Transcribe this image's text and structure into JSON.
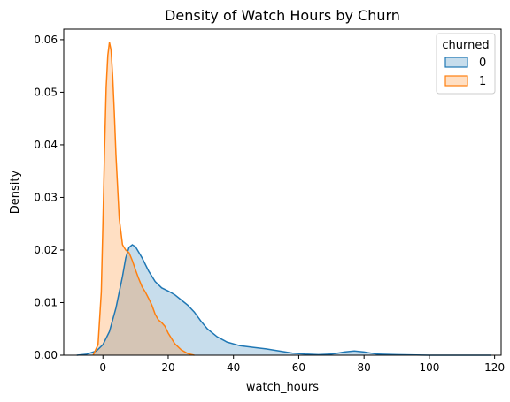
{
  "chart_data": {
    "type": "area",
    "title": "Density of Watch Hours by Churn",
    "xlabel": "watch_hours",
    "ylabel": "Density",
    "xlim": [
      -12,
      122
    ],
    "ylim": [
      0,
      0.062
    ],
    "xticks": [
      0,
      20,
      40,
      60,
      80,
      100,
      120
    ],
    "yticks": [
      0.0,
      0.01,
      0.02,
      0.03,
      0.04,
      0.05,
      0.06
    ],
    "ytick_labels": [
      "0.00",
      "0.01",
      "0.02",
      "0.03",
      "0.04",
      "0.05",
      "0.06"
    ],
    "grid": false,
    "legend": {
      "title": "churned",
      "position": "top-right"
    },
    "series": [
      {
        "name": "0",
        "color": "#1f77b4",
        "x": [
          -8,
          -5,
          -2,
          0,
          2,
          4,
          6,
          7,
          8,
          9,
          10,
          12,
          14,
          16,
          18,
          20,
          22,
          24,
          26,
          28,
          30,
          32,
          35,
          38,
          42,
          46,
          50,
          54,
          58,
          62,
          66,
          70,
          74,
          77,
          80,
          84,
          90,
          100,
          110,
          119
        ],
        "y": [
          0.0,
          0.0002,
          0.0008,
          0.002,
          0.0045,
          0.009,
          0.015,
          0.0185,
          0.0205,
          0.021,
          0.0206,
          0.0185,
          0.016,
          0.014,
          0.0128,
          0.0122,
          0.0115,
          0.0105,
          0.0095,
          0.0082,
          0.0065,
          0.005,
          0.0035,
          0.0025,
          0.0018,
          0.0015,
          0.0012,
          0.0008,
          0.0004,
          0.0002,
          0.0001,
          0.0002,
          0.0006,
          0.0008,
          0.0006,
          0.0002,
          0.0001,
          0.0,
          0.0,
          0.0
        ]
      },
      {
        "name": "1",
        "color": "#ff7f0e",
        "x": [
          -3,
          -1.5,
          -0.5,
          0,
          0.5,
          1,
          1.5,
          2,
          2.5,
          3,
          3.5,
          4,
          5,
          6,
          7,
          8,
          9,
          10,
          11,
          12,
          13,
          14,
          15,
          16,
          17,
          18,
          19,
          20,
          22,
          24,
          26,
          28
        ],
        "y": [
          0.0,
          0.002,
          0.012,
          0.025,
          0.039,
          0.051,
          0.057,
          0.0595,
          0.058,
          0.053,
          0.046,
          0.038,
          0.026,
          0.021,
          0.02,
          0.0195,
          0.018,
          0.0162,
          0.0145,
          0.013,
          0.012,
          0.0108,
          0.0095,
          0.0078,
          0.0067,
          0.0062,
          0.0055,
          0.0042,
          0.0022,
          0.001,
          0.0003,
          0.0
        ]
      }
    ]
  }
}
